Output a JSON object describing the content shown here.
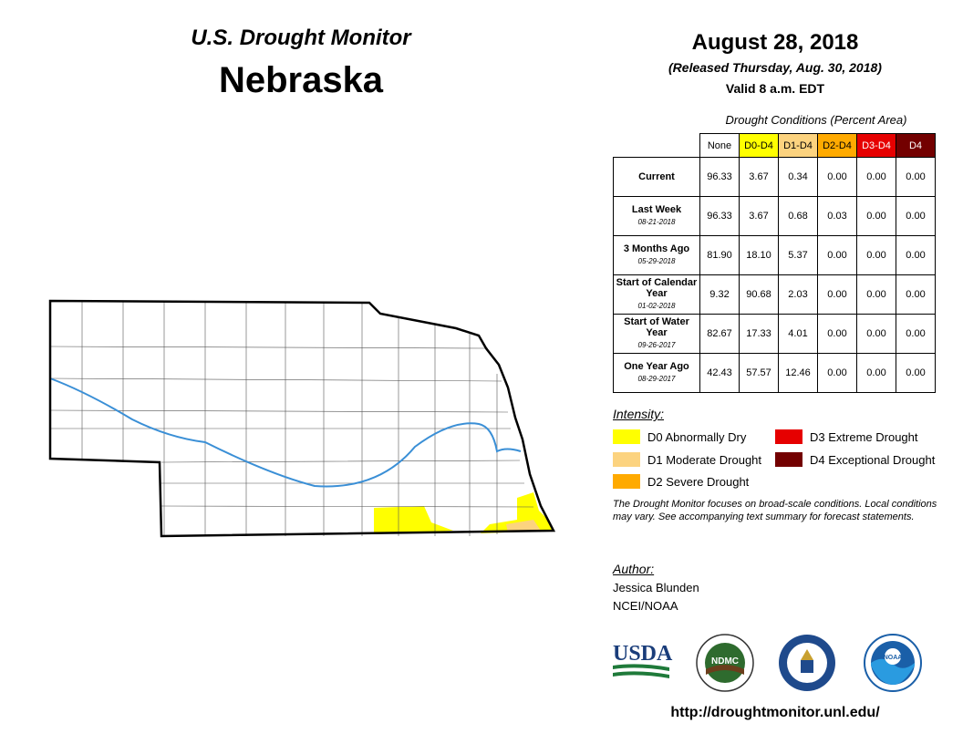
{
  "header": {
    "monitor_title": "U.S. Drought Monitor",
    "state": "Nebraska",
    "date": "August 28, 2018",
    "released": "(Released Thursday, Aug. 30, 2018)",
    "valid": "Valid 8 a.m. EDT"
  },
  "table": {
    "caption": "Drought Conditions (Percent Area)",
    "columns": [
      "None",
      "D0-D4",
      "D1-D4",
      "D2-D4",
      "D3-D4",
      "D4"
    ],
    "column_colors": [
      "#ffffff",
      "#ffff00",
      "#fcd37f",
      "#ffaa00",
      "#e60000",
      "#730000"
    ],
    "rows": [
      {
        "label": "Current",
        "date": "",
        "values": [
          "96.33",
          "3.67",
          "0.34",
          "0.00",
          "0.00",
          "0.00"
        ]
      },
      {
        "label": "Last Week",
        "date": "08-21-2018",
        "values": [
          "96.33",
          "3.67",
          "0.68",
          "0.03",
          "0.00",
          "0.00"
        ]
      },
      {
        "label": "3 Months Ago",
        "date": "05-29-2018",
        "values": [
          "81.90",
          "18.10",
          "5.37",
          "0.00",
          "0.00",
          "0.00"
        ]
      },
      {
        "label": "Start of Calendar Year",
        "date": "01-02-2018",
        "values": [
          "9.32",
          "90.68",
          "2.03",
          "0.00",
          "0.00",
          "0.00"
        ]
      },
      {
        "label": "Start of Water Year",
        "date": "09-26-2017",
        "values": [
          "82.67",
          "17.33",
          "4.01",
          "0.00",
          "0.00",
          "0.00"
        ]
      },
      {
        "label": "One Year Ago",
        "date": "08-29-2017",
        "values": [
          "42.43",
          "57.57",
          "12.46",
          "0.00",
          "0.00",
          "0.00"
        ]
      }
    ]
  },
  "legend": {
    "title": "Intensity:",
    "items": [
      {
        "label": "D0 Abnormally Dry",
        "color": "#ffff00"
      },
      {
        "label": "D1 Moderate Drought",
        "color": "#fcd37f"
      },
      {
        "label": "D2 Severe Drought",
        "color": "#ffaa00"
      },
      {
        "label": "D3 Extreme Drought",
        "color": "#e60000"
      },
      {
        "label": "D4 Exceptional Drought",
        "color": "#730000"
      }
    ]
  },
  "note": "The Drought Monitor focuses on broad-scale conditions. Local conditions may vary. See accompanying text summary for forecast statements.",
  "author": {
    "caption": "Author:",
    "name": "Jessica Blunden",
    "org": "NCEI/NOAA"
  },
  "logos": {
    "usda": "USDA",
    "ndmc": "NDMC",
    "noaa": "NOAA"
  },
  "url": "http://droughtmonitor.unl.edu/",
  "map": {
    "state_outline_color": "#000000",
    "river_color": "#3a8fd6",
    "county_line_color": "#555555"
  }
}
